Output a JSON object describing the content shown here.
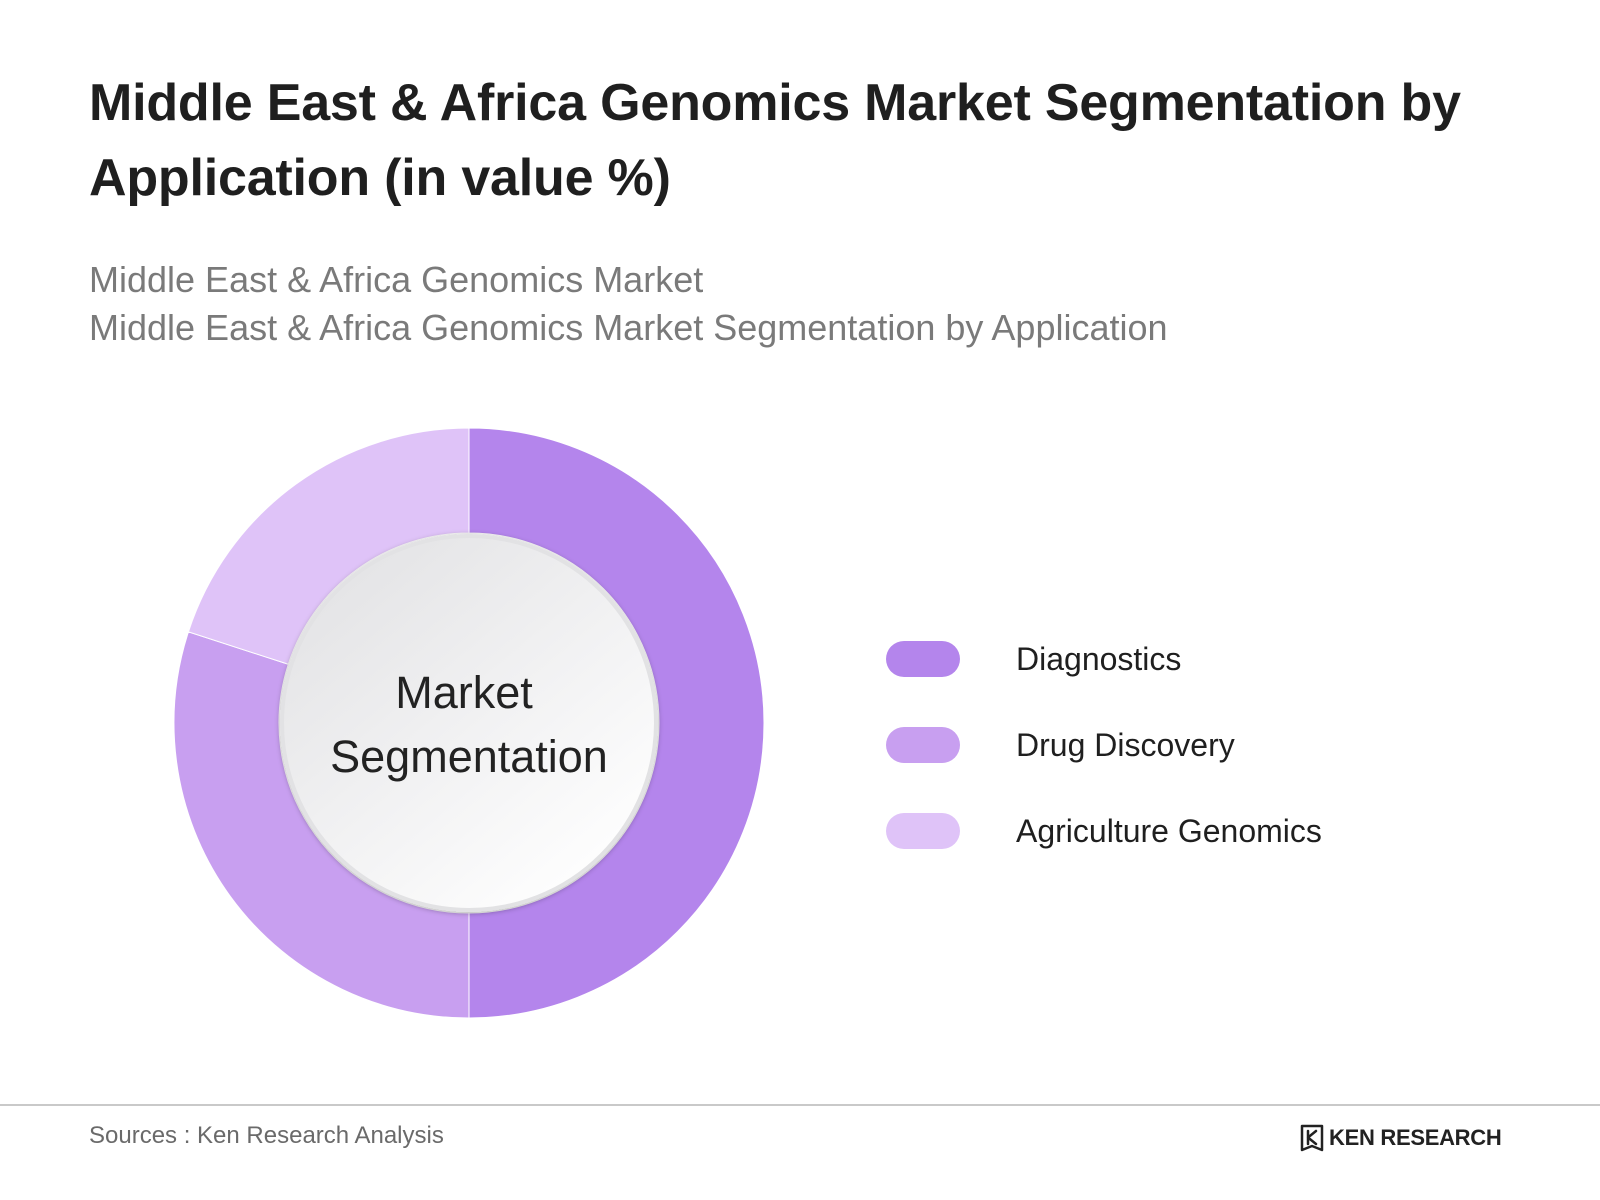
{
  "title": "Middle East & Africa Genomics Market Segmentation by Application (in value %)",
  "subtitle_1": "Middle East & Africa Genomics Market",
  "subtitle_2": "Middle East & Africa Genomics Market Segmentation by Application",
  "chart_data": {
    "type": "pie",
    "variant": "donut",
    "center_label": [
      "Market",
      "Segmentation"
    ],
    "categories": [
      "Diagnostics",
      "Drug Discovery",
      "Agriculture Genomics"
    ],
    "values": [
      50,
      30,
      20
    ],
    "colors": [
      "#b485ec",
      "#c89ff0",
      "#dfc3f8"
    ],
    "legend_position": "right",
    "start_angle": "top",
    "direction": "clockwise"
  },
  "footer": {
    "sources": "Sources : Ken Research Analysis",
    "brand": "KEN RESEARCH"
  }
}
